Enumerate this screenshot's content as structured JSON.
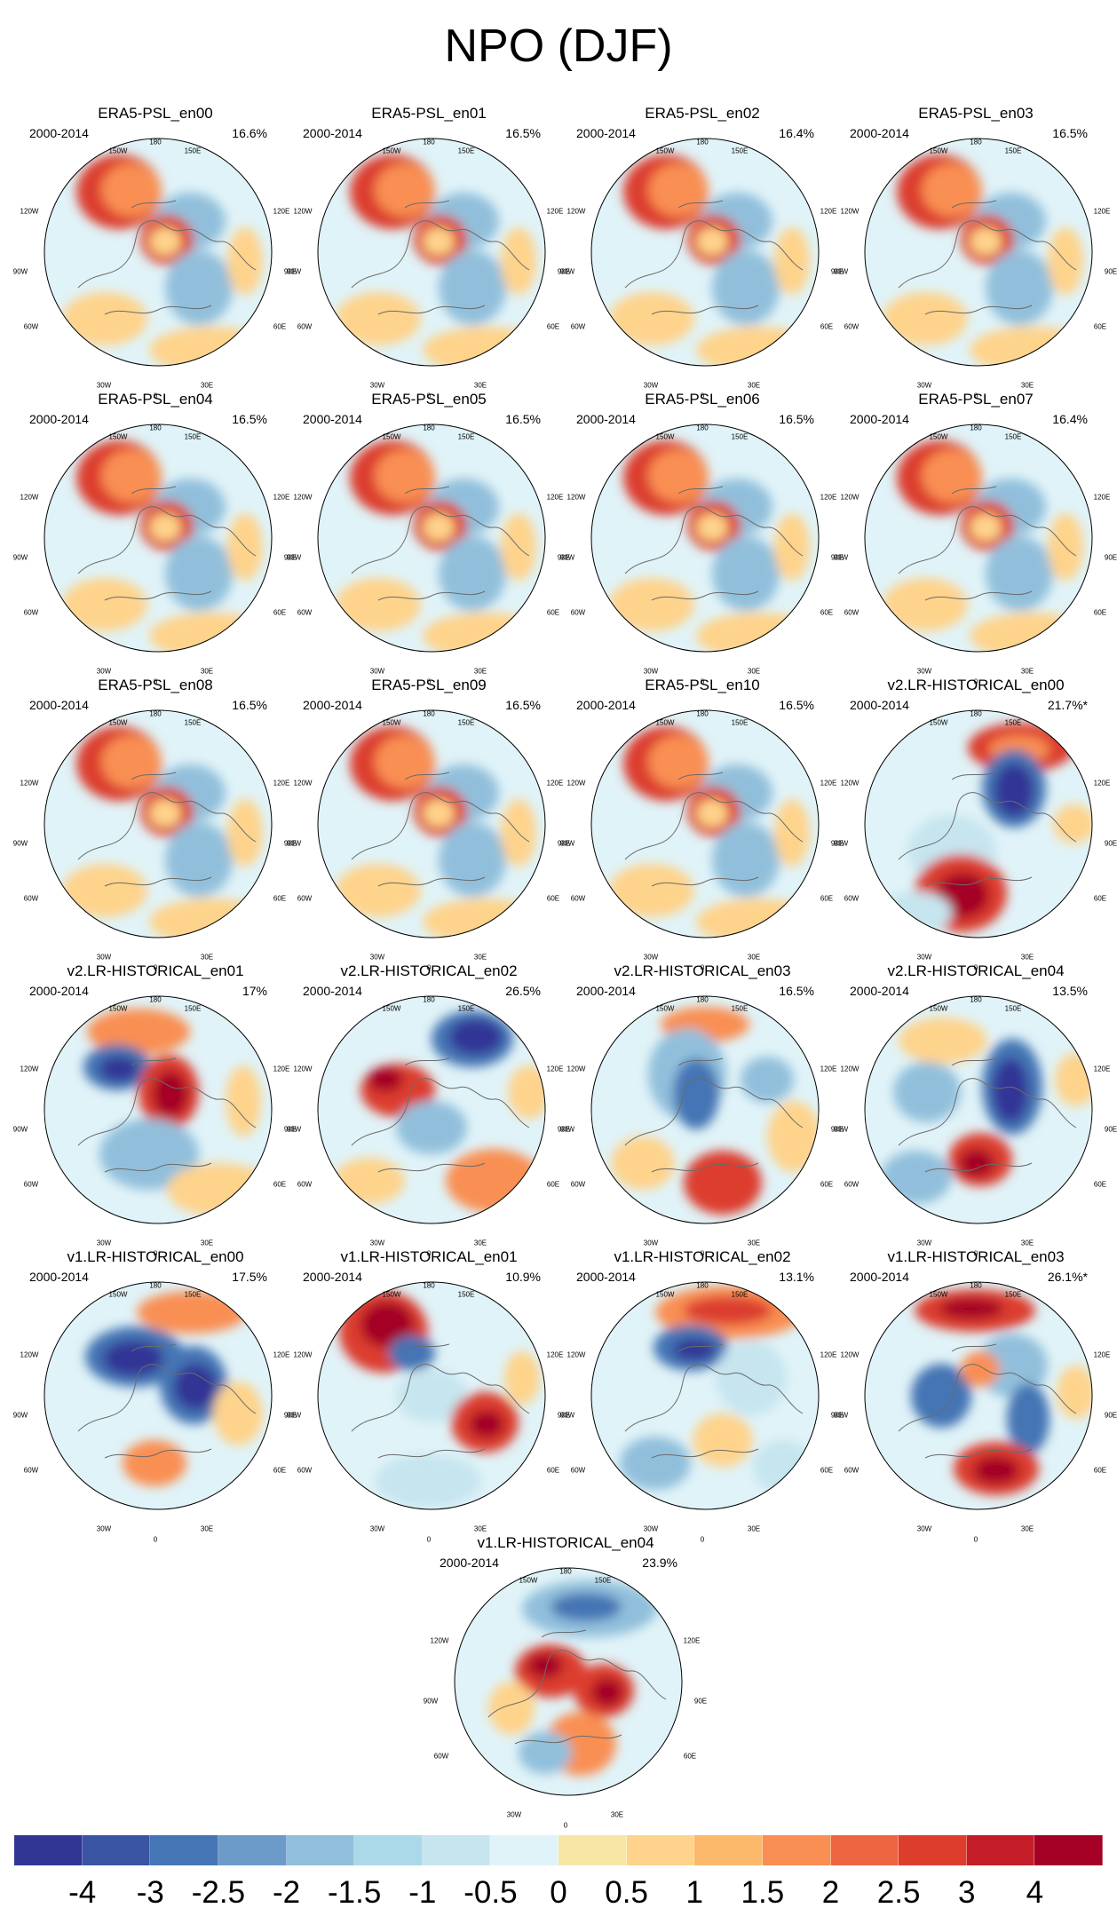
{
  "figure": {
    "title": "NPO (DJF)",
    "period": "2000-2014",
    "map_labels": {
      "top": "180",
      "top_left": "150W",
      "top_right": "150E",
      "upper_left": "120W",
      "upper_right": "120E",
      "left": "90W",
      "right": "90E",
      "lower_left": "60W",
      "lower_right": "60E",
      "bottom_left": "30W",
      "bottom_right": "30E",
      "bottom": "0"
    },
    "panels": [
      {
        "name": "ERA5-PSL_en00",
        "pct": "16.6%",
        "style": "era"
      },
      {
        "name": "ERA5-PSL_en01",
        "pct": "16.5%",
        "style": "era"
      },
      {
        "name": "ERA5-PSL_en02",
        "pct": "16.4%",
        "style": "era"
      },
      {
        "name": "ERA5-PSL_en03",
        "pct": "16.5%",
        "style": "era"
      },
      {
        "name": "ERA5-PSL_en04",
        "pct": "16.5%",
        "style": "era"
      },
      {
        "name": "ERA5-PSL_en05",
        "pct": "16.5%",
        "style": "era"
      },
      {
        "name": "ERA5-PSL_en06",
        "pct": "16.5%",
        "style": "era"
      },
      {
        "name": "ERA5-PSL_en07",
        "pct": "16.4%",
        "style": "era"
      },
      {
        "name": "ERA5-PSL_en08",
        "pct": "16.5%",
        "style": "era"
      },
      {
        "name": "ERA5-PSL_en09",
        "pct": "16.5%",
        "style": "era"
      },
      {
        "name": "ERA5-PSL_en10",
        "pct": "16.5%",
        "style": "era"
      },
      {
        "name": "v2.LR-HISTORICAL_en00",
        "pct": "21.7%*",
        "style": "v2a"
      },
      {
        "name": "v2.LR-HISTORICAL_en01",
        "pct": "17%",
        "style": "v2b"
      },
      {
        "name": "v2.LR-HISTORICAL_en02",
        "pct": "26.5%",
        "style": "v2c"
      },
      {
        "name": "v2.LR-HISTORICAL_en03",
        "pct": "16.5%",
        "style": "v2d"
      },
      {
        "name": "v2.LR-HISTORICAL_en04",
        "pct": "13.5%",
        "style": "v2e"
      },
      {
        "name": "v1.LR-HISTORICAL_en00",
        "pct": "17.5%",
        "style": "v1a"
      },
      {
        "name": "v1.LR-HISTORICAL_en01",
        "pct": "10.9%",
        "style": "v1b"
      },
      {
        "name": "v1.LR-HISTORICAL_en02",
        "pct": "13.1%",
        "style": "v1c"
      },
      {
        "name": "v1.LR-HISTORICAL_en03",
        "pct": "26.1%*",
        "style": "v1d"
      },
      {
        "name": "v1.LR-HISTORICAL_en04",
        "pct": "23.9%",
        "style": "v1e"
      }
    ],
    "colorbar": {
      "colors": [
        "#313695",
        "#3a54a4",
        "#4575b4",
        "#6c9bc9",
        "#91bfdb",
        "#abd9e9",
        "#c6e5ef",
        "#e0f3f8",
        "#f7e6a6",
        "#fed38b",
        "#fdb96b",
        "#f98f52",
        "#ee6542",
        "#dc3d2d",
        "#c41d27",
        "#a50026"
      ],
      "labels": [
        "-4",
        "-3",
        "-2.5",
        "-2",
        "-1.5",
        "-1",
        "-0.5",
        "0",
        "0.5",
        "1",
        "1.5",
        "2",
        "2.5",
        "3",
        "4"
      ]
    }
  }
}
